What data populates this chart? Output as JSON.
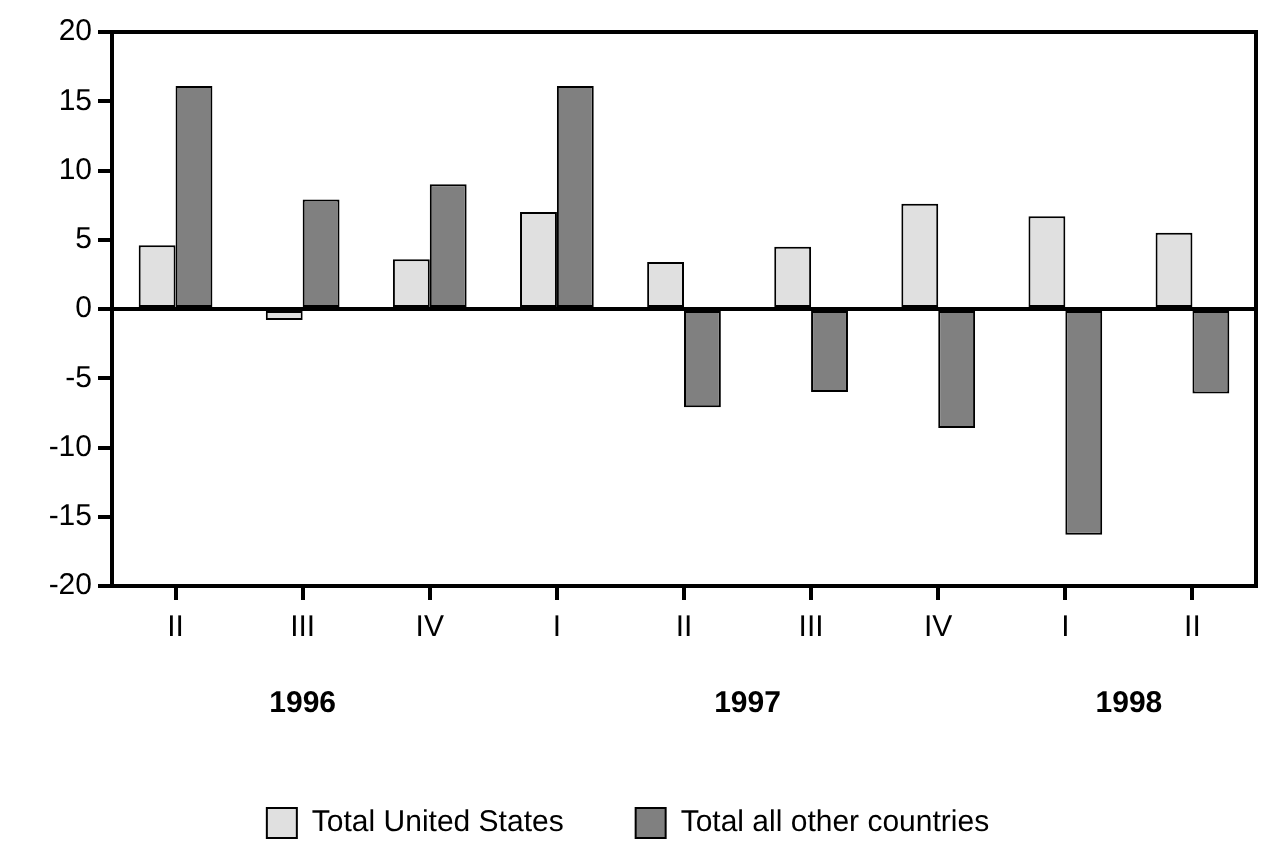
{
  "chart_data": {
    "type": "bar",
    "categories": [
      "II",
      "III",
      "IV",
      "I",
      "II",
      "III",
      "IV",
      "I",
      "II"
    ],
    "series": [
      {
        "name": "Total United States",
        "color": "#e0e0e0",
        "values": [
          4.6,
          -0.8,
          3.6,
          7.0,
          3.4,
          4.5,
          7.6,
          6.7,
          5.5
        ]
      },
      {
        "name": "Total all other countries",
        "color": "#808080",
        "values": [
          16.1,
          7.9,
          9.0,
          16.1,
          -7.1,
          -6.0,
          -8.6,
          -16.3,
          -6.1
        ]
      }
    ],
    "ref_lines": [
      {
        "axis": "y",
        "value": 0,
        "color": "#000000",
        "line_style": "solid"
      }
    ],
    "ylim": [
      -20,
      20
    ],
    "yticks": [
      -20,
      -15,
      -10,
      -5,
      0,
      5,
      10,
      15,
      20
    ],
    "grid": false,
    "legend": "bottom",
    "annotations": [
      "1996",
      "1997",
      "1998"
    ]
  }
}
